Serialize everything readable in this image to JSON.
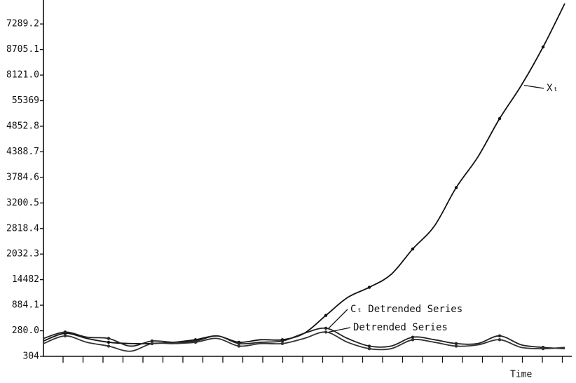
{
  "chart_data": {
    "type": "line",
    "x": [
      0,
      1,
      2,
      3,
      4,
      5,
      6,
      7,
      8,
      9,
      10,
      11,
      12,
      13,
      14,
      15,
      16,
      17,
      18,
      19,
      20,
      21,
      22,
      23,
      24
    ],
    "xlim": [
      0,
      24
    ],
    "xlabel": "Time",
    "ylim": [
      0,
      13.8
    ],
    "yticks": [
      {
        "value": 0,
        "label": "304"
      },
      {
        "value": 1,
        "label": "280.0"
      },
      {
        "value": 2,
        "label": "884.1"
      },
      {
        "value": 3,
        "label": "14482"
      },
      {
        "value": 4,
        "label": "2032.3"
      },
      {
        "value": 5,
        "label": "2818.4"
      },
      {
        "value": 6,
        "label": "3200.5"
      },
      {
        "value": 7,
        "label": "3784.6"
      },
      {
        "value": 8,
        "label": "4388.7"
      },
      {
        "value": 9,
        "label": "4852.8"
      },
      {
        "value": 10,
        "label": "55369"
      },
      {
        "value": 11,
        "label": "8121.0"
      },
      {
        "value": 12,
        "label": "8705.1"
      },
      {
        "value": 13,
        "label": "7289.2"
      }
    ],
    "series": [
      {
        "name": "Xₜ",
        "color": "#111111",
        "values": [
          0.6,
          0.9,
          0.7,
          0.55,
          0.5,
          0.5,
          0.55,
          0.65,
          0.8,
          0.55,
          0.65,
          0.65,
          0.9,
          1.6,
          2.3,
          2.7,
          3.2,
          4.2,
          5.1,
          6.6,
          7.8,
          9.3,
          10.6,
          12.1,
          13.8
        ]
      },
      {
        "name": "Cₜ Detrended Series",
        "color": "#222222",
        "values": [
          0.7,
          0.95,
          0.75,
          0.7,
          0.4,
          0.6,
          0.55,
          0.6,
          0.8,
          0.5,
          0.55,
          0.6,
          0.9,
          1.1,
          0.7,
          0.4,
          0.4,
          0.75,
          0.65,
          0.5,
          0.5,
          0.8,
          0.45,
          0.35,
          0.3
        ]
      },
      {
        "name": "Detrended Series",
        "color": "#333333",
        "values": [
          0.5,
          0.8,
          0.55,
          0.4,
          0.2,
          0.5,
          0.5,
          0.55,
          0.7,
          0.4,
          0.5,
          0.5,
          0.7,
          0.95,
          0.55,
          0.3,
          0.3,
          0.65,
          0.55,
          0.4,
          0.45,
          0.65,
          0.35,
          0.3,
          0.35
        ]
      }
    ]
  }
}
